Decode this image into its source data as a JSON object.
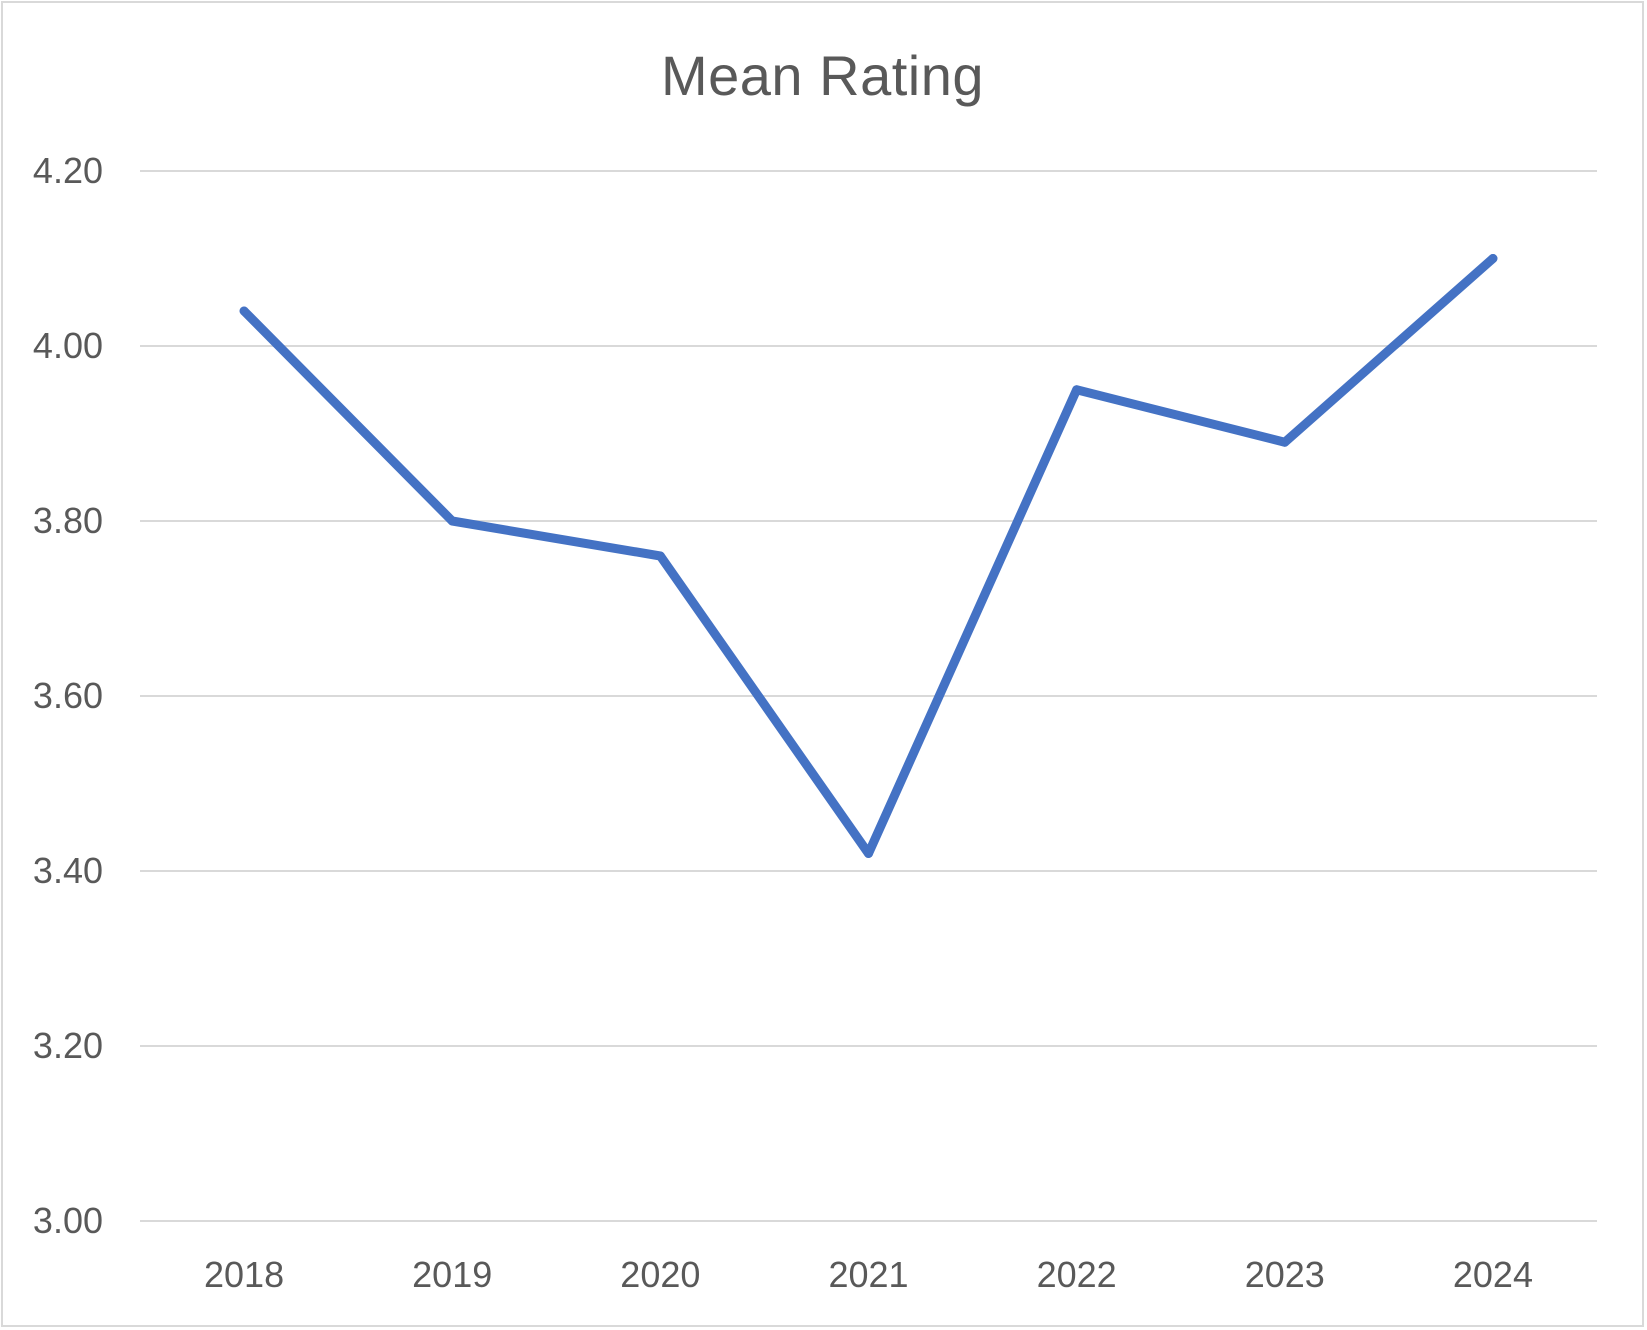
{
  "chart_data": {
    "type": "line",
    "title": "Mean Rating",
    "xlabel": "",
    "ylabel": "",
    "categories": [
      "2018",
      "2019",
      "2020",
      "2021",
      "2022",
      "2023",
      "2024"
    ],
    "series": [
      {
        "values": [
          4.04,
          3.8,
          3.76,
          3.42,
          3.95,
          3.89,
          4.1
        ]
      }
    ],
    "ylim": [
      3.0,
      4.2
    ],
    "yticks": [
      "3.00",
      "3.20",
      "3.40",
      "3.60",
      "3.80",
      "4.00",
      "4.20"
    ],
    "grid": true,
    "legend": "none",
    "colors": {
      "line": "#4472c4",
      "grid": "#d9d9d9",
      "text": "#595959"
    }
  }
}
